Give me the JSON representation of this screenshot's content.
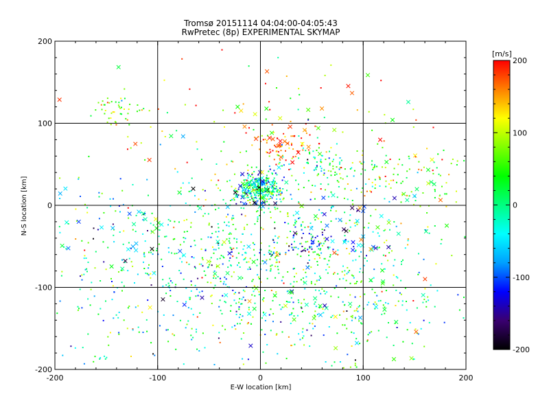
{
  "chart_data": {
    "type": "scatter",
    "title": "Tromsø 20151114 04:04:00-04:05:43",
    "subtitle": "RwPretec (8p) EXPERIMENTAL SKYMAP",
    "xlabel": "E-W location [km]",
    "ylabel": "N-S location [km]",
    "xlim": [
      -200,
      200
    ],
    "ylim": [
      -200,
      200
    ],
    "x_ticks": [
      "-200",
      "-100",
      "0",
      "100",
      "200"
    ],
    "y_ticks": [
      "-200",
      "-100",
      "0",
      "100",
      "200"
    ],
    "grid": true,
    "colorbar": {
      "unit": "[m/s]",
      "range": [
        -200,
        200
      ],
      "ticks": [
        "200",
        "100",
        "0",
        "-100",
        "-200"
      ],
      "colormap": [
        "#000000",
        "#3a0070",
        "#0000ff",
        "#00a0ff",
        "#00ffff",
        "#00ff80",
        "#00ff00",
        "#80ff00",
        "#ffff00",
        "#ff8000",
        "#ff0000"
      ]
    },
    "series": [
      {
        "marker": "dot",
        "clusters": [
          {
            "x": 0,
            "y": 20,
            "sx": 12,
            "sy": 10,
            "n": 300,
            "v": 0,
            "vs": 70
          },
          {
            "x": 20,
            "y": -50,
            "sx": 70,
            "sy": 45,
            "n": 520,
            "v": 20,
            "vs": 70
          },
          {
            "x": 60,
            "y": 50,
            "sx": 18,
            "sy": 12,
            "n": 70,
            "v": 10,
            "vs": 50
          },
          {
            "x": 140,
            "y": 35,
            "sx": 40,
            "sy": 20,
            "n": 110,
            "v": 70,
            "vs": 60
          },
          {
            "x": -135,
            "y": 115,
            "sx": 12,
            "sy": 10,
            "n": 45,
            "v": 80,
            "vs": 40
          },
          {
            "x": 20,
            "y": 75,
            "sx": 15,
            "sy": 12,
            "n": 60,
            "v": 170,
            "vs": 40
          },
          {
            "x": -40,
            "y": -80,
            "sx": 40,
            "sy": 40,
            "n": 160,
            "v": -20,
            "vs": 90
          },
          {
            "x": 90,
            "y": -110,
            "sx": 50,
            "sy": 40,
            "n": 160,
            "v": 20,
            "vs": 70
          },
          {
            "x": -150,
            "y": -60,
            "sx": 40,
            "sy": 50,
            "n": 120,
            "v": 0,
            "vs": 80
          },
          {
            "x": 0,
            "y": 80,
            "sx": 100,
            "sy": 50,
            "n": 120,
            "v": 80,
            "vs": 100
          },
          {
            "x": 0,
            "y": -150,
            "sx": 90,
            "sy": 30,
            "n": 130,
            "v": 10,
            "vs": 70
          },
          {
            "x": 45,
            "y": -45,
            "sx": 15,
            "sy": 12,
            "n": 50,
            "v": -130,
            "vs": 30
          },
          {
            "x": -140,
            "y": -150,
            "sx": 30,
            "sy": 30,
            "n": 40,
            "v": 0,
            "vs": 60
          }
        ]
      },
      {
        "marker": "cross",
        "clusters": [
          {
            "x": 0,
            "y": 20,
            "sx": 15,
            "sy": 12,
            "n": 40,
            "v": -40,
            "vs": 90
          },
          {
            "x": 90,
            "y": -30,
            "sx": 25,
            "sy": 15,
            "n": 20,
            "v": -110,
            "vs": 50
          },
          {
            "x": -120,
            "y": -50,
            "sx": 30,
            "sy": 25,
            "n": 16,
            "v": -60,
            "vs": 80
          },
          {
            "x": 30,
            "y": -60,
            "sx": 80,
            "sy": 50,
            "n": 70,
            "v": 0,
            "vs": 100
          },
          {
            "x": 0,
            "y": 100,
            "sx": 90,
            "sy": 40,
            "n": 30,
            "v": 110,
            "vs": 80
          },
          {
            "x": 160,
            "y": 30,
            "sx": 30,
            "sy": 15,
            "n": 12,
            "v": 50,
            "vs": 80
          },
          {
            "x": -180,
            "y": -20,
            "sx": 15,
            "sy": 25,
            "n": 10,
            "v": -70,
            "vs": 60
          },
          {
            "x": 20,
            "y": 75,
            "sx": 15,
            "sy": 10,
            "n": 14,
            "v": 170,
            "vs": 30
          },
          {
            "x": 40,
            "y": -150,
            "sx": 80,
            "sy": 30,
            "n": 24,
            "v": 0,
            "vs": 80
          }
        ]
      }
    ]
  }
}
